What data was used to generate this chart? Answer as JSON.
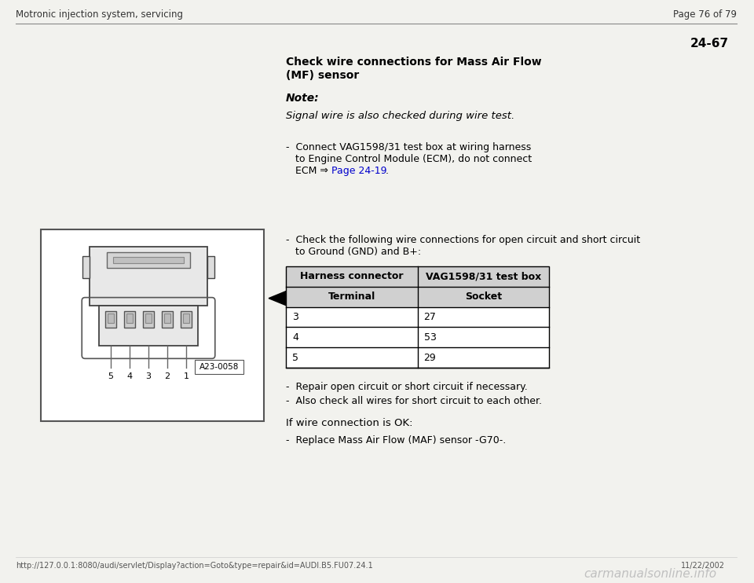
{
  "page_header_left": "Motronic injection system, servicing",
  "page_header_right": "Page 76 of 79",
  "page_number": "24-67",
  "title_line1": "Check wire connections for Mass Air Flow",
  "title_line2": "(MF) sensor",
  "note_label": "Note:",
  "note_text": "Signal wire is also checked during wire test.",
  "bullet1_line1": "-  Connect VAG1598/31 test box at wiring harness",
  "bullet1_line2": "   to Engine Control Module (ECM), do not connect",
  "bullet1_line3_pre": "   ECM ⇒ ",
  "page_link_text": "Page 24-19",
  "bullet1_line3_post": " .",
  "bullet2_line1": "-  Check the following wire connections for open circuit and short circuit",
  "bullet2_line2": "   to Ground (GND) and B+:",
  "table_header_col1": "Harness connector",
  "table_header_col2": "VAG1598/31 test box",
  "table_subheader_col1": "Terminal",
  "table_subheader_col2": "Socket",
  "table_rows": [
    [
      "3",
      "27"
    ],
    [
      "4",
      "53"
    ],
    [
      "5",
      "29"
    ]
  ],
  "bullet3": "-  Repair open circuit or short circuit if necessary.",
  "bullet4": "-  Also check all wires for short circuit to each other.",
  "if_wire_text": "If wire connection is OK:",
  "bullet5": "-  Replace Mass Air Flow (MAF) sensor -G70-.",
  "footer_url": "http://127.0.0.1:8080/audi/servlet/Display?action=Goto&type=repair&id=AUDI.B5.FU07.24.1",
  "footer_date": "11/22/2002",
  "footer_watermark": "carmanualsonline.info",
  "bg_color": "#f2f2ee",
  "text_color": "#000000",
  "link_color": "#0000cc",
  "header_line_color": "#888888",
  "table_border_color": "#000000",
  "table_header_bg": "#d0d0d0",
  "diagram_label": "A23-0058",
  "diagram_box_color": "#555555",
  "connector_body_color": "#e8e8e8",
  "connector_edge_color": "#444444"
}
